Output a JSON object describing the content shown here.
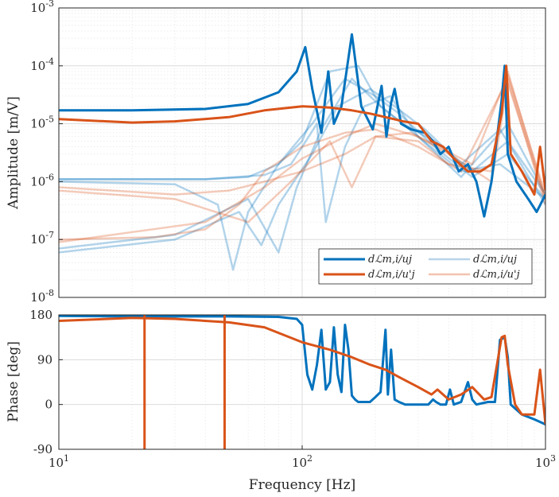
{
  "chart_data": [
    {
      "type": "line",
      "subplot": "amplitude",
      "xscale": "log",
      "yscale": "log",
      "xlim": [
        10,
        1000
      ],
      "ylim": [
        1e-08,
        0.001
      ],
      "ylabel": "Amplitude [m/V]",
      "grid": true,
      "legend_position": "bottom-right",
      "y_ticks": [
        {
          "value": 1e-08,
          "base": "10",
          "exp": "-8"
        },
        {
          "value": 1e-07,
          "base": "10",
          "exp": "-7"
        },
        {
          "value": 1e-06,
          "base": "10",
          "exp": "-6"
        },
        {
          "value": 1e-05,
          "base": "10",
          "exp": "-5"
        },
        {
          "value": 0.0001,
          "base": "10",
          "exp": "-4"
        },
        {
          "value": 0.001,
          "base": "10",
          "exp": "-3"
        }
      ],
      "legend": [
        {
          "text": "dℒm,i/uj",
          "color": "#0072BD",
          "style": "bold"
        },
        {
          "text": "dℒm,i/u'j",
          "color": "#D95319",
          "style": "bold"
        },
        {
          "text": "dℒm,i/uj",
          "color": "#B8D4EA",
          "style": "light"
        },
        {
          "text": "dℒm,i/u'j",
          "color": "#F2C3AE",
          "style": "light"
        }
      ],
      "series": [
        {
          "name": "dℒm,i/uj",
          "color": "#0072BD",
          "style": "bold",
          "x": [
            10,
            20,
            40,
            60,
            80,
            95,
            103,
            110,
            120,
            128,
            135,
            145,
            160,
            175,
            195,
            212,
            222,
            232,
            240,
            255,
            280,
            320,
            345,
            370,
            400,
            440,
            480,
            520,
            560,
            600,
            660,
            680,
            700,
            760,
            850,
            920,
            1000
          ],
          "y": [
            1.7e-05,
            1.7e-05,
            1.8e-05,
            2.2e-05,
            3.5e-05,
            8e-05,
            0.00021,
            4e-05,
            7e-06,
            8e-05,
            1e-05,
            2e-05,
            0.00035,
            2e-05,
            8e-06,
            4.5e-05,
            6e-06,
            2.3e-05,
            4e-05,
            1e-05,
            8e-06,
            7e-06,
            5e-06,
            3e-06,
            4e-06,
            1.5e-06,
            2e-06,
            1e-06,
            2.5e-07,
            1e-06,
            2.5e-05,
            0.0001,
            3e-06,
            1e-06,
            5e-07,
            3e-07,
            6e-07
          ]
        },
        {
          "name": "dℒm,i/u'j",
          "color": "#D95319",
          "style": "bold",
          "x": [
            10,
            20,
            30,
            50,
            70,
            100,
            130,
            160,
            190,
            220,
            260,
            300,
            340,
            380,
            420,
            480,
            540,
            600,
            660,
            690,
            720,
            800,
            900,
            950,
            1000
          ],
          "y": [
            1.2e-05,
            1.05e-05,
            1.1e-05,
            1.3e-05,
            1.7e-05,
            2e-05,
            1.9e-05,
            1.7e-05,
            1.5e-05,
            1.3e-05,
            1.1e-05,
            1e-05,
            5e-06,
            4e-06,
            2.5e-06,
            1.5e-06,
            1.5e-06,
            2e-06,
            1.5e-05,
            0.0001,
            3e-06,
            1.5e-06,
            6e-07,
            4e-06,
            7e-07
          ]
        },
        {
          "color": "#0072BD",
          "style": "light",
          "x": [
            10,
            40,
            60,
            80,
            100,
            130,
            170,
            210,
            260,
            350,
            500,
            700,
            1000
          ],
          "y": [
            1.1e-06,
            1.1e-06,
            1.2e-06,
            2e-06,
            5e-06,
            8e-05,
            0.0001,
            2e-05,
            1e-05,
            5e-06,
            1.5e-06,
            5e-06,
            6e-07
          ]
        },
        {
          "color": "#0072BD",
          "style": "light",
          "x": [
            10,
            30,
            45,
            52,
            60,
            80,
            110,
            150,
            200,
            250,
            350,
            500,
            700,
            1000
          ],
          "y": [
            1e-06,
            9e-07,
            4e-07,
            3e-08,
            3e-07,
            2e-06,
            1e-05,
            6e-05,
            3e-05,
            1.5e-05,
            4e-06,
            1.2e-06,
            3e-06,
            5e-07
          ]
        },
        {
          "color": "#0072BD",
          "style": "light",
          "x": [
            10,
            30,
            55,
            68,
            80,
            110,
            140,
            190,
            240,
            320,
            450,
            650,
            1000
          ],
          "y": [
            6e-08,
            1e-07,
            3e-07,
            8e-08,
            4e-07,
            3e-06,
            2e-05,
            4e-05,
            2e-05,
            8e-06,
            2e-06,
            8e-06,
            4e-07
          ]
        },
        {
          "color": "#0072BD",
          "style": "light",
          "x": [
            10,
            30,
            60,
            80,
            95,
            120,
            160,
            210,
            300,
            450,
            650,
            1000
          ],
          "y": [
            7e-08,
            1.2e-07,
            5e-07,
            6e-08,
            8e-07,
            8e-06,
            6e-05,
            2e-05,
            6e-06,
            1.5e-06,
            2e-06,
            5e-07
          ]
        },
        {
          "color": "#0072BD",
          "style": "light",
          "x": [
            10,
            40,
            70,
            90,
            115,
            125,
            150,
            180,
            230,
            300,
            450,
            700,
            1000
          ],
          "y": [
            1.1e-06,
            1.1e-06,
            1.3e-06,
            2e-06,
            1e-05,
            2e-07,
            4e-06,
            2e-05,
            3e-05,
            6e-06,
            1.2e-06,
            1e-05,
            6e-07
          ]
        },
        {
          "color": "#D95319",
          "style": "light",
          "x": [
            10,
            30,
            50,
            70,
            100,
            150,
            200,
            300,
            400,
            600,
            700,
            1000
          ],
          "y": [
            8e-07,
            6e-07,
            7e-07,
            1e-06,
            1.5e-06,
            3e-06,
            6e-06,
            5e-06,
            2e-06,
            1.5e-06,
            8e-05,
            5e-07
          ]
        },
        {
          "color": "#D95319",
          "style": "light",
          "x": [
            10,
            25,
            40,
            55,
            70,
            100,
            150,
            200,
            300,
            450,
            700,
            1000
          ],
          "y": [
            1e-07,
            1.1e-07,
            1.5e-07,
            4e-07,
            1.5e-06,
            4e-06,
            7e-06,
            8e-06,
            4e-06,
            1.5e-06,
            6e-05,
            4e-07
          ]
        },
        {
          "color": "#D95319",
          "style": "light",
          "x": [
            10,
            30,
            60,
            90,
            130,
            160,
            200,
            280,
            400,
            600,
            700,
            1000
          ],
          "y": [
            7e-07,
            5e-07,
            2e-07,
            1e-06,
            5e-06,
            8e-07,
            6e-06,
            7e-06,
            3e-06,
            1e-06,
            5e-05,
            5e-07
          ]
        },
        {
          "color": "#D95319",
          "style": "light",
          "x": [
            10,
            40,
            70,
            100,
            150,
            200,
            300,
            500,
            700,
            1000
          ],
          "y": [
            9e-08,
            2e-07,
            8e-07,
            2.5e-06,
            6e-06,
            1e-05,
            6e-06,
            2e-06,
            7e-05,
            6e-07
          ]
        }
      ]
    },
    {
      "type": "line",
      "subplot": "phase",
      "xscale": "log",
      "xlim": [
        10,
        1000
      ],
      "ylim": [
        -90,
        180
      ],
      "xlabel": "Frequency [Hz]",
      "ylabel": "Phase [deg]",
      "grid": true,
      "y_ticks": [
        "-90",
        "0",
        "90",
        "180"
      ],
      "x_ticks": [
        {
          "value": 10,
          "base": "10",
          "exp": "1"
        },
        {
          "value": 100,
          "base": "10",
          "exp": "2"
        },
        {
          "value": 1000,
          "base": "10",
          "exp": "3"
        }
      ],
      "series": [
        {
          "name": "dℒm,i/uj",
          "color": "#0072BD",
          "x": [
            10,
            20,
            50,
            80,
            95,
            100,
            105,
            110,
            115,
            120,
            125,
            130,
            135,
            140,
            145,
            150,
            155,
            160,
            165,
            170,
            180,
            190,
            200,
            210,
            220,
            225,
            232,
            240,
            250,
            265,
            300,
            330,
            345,
            355,
            370,
            390,
            405,
            420,
            450,
            480,
            500,
            520,
            580,
            620,
            650,
            680,
            700,
            720,
            800,
            900,
            950,
            1000
          ],
          "y": [
            178,
            177,
            177,
            176,
            172,
            160,
            60,
            30,
            80,
            150,
            30,
            45,
            155,
            60,
            25,
            160,
            110,
            18,
            10,
            5,
            5,
            5,
            15,
            25,
            150,
            20,
            110,
            10,
            5,
            0,
            0,
            0,
            10,
            5,
            0,
            0,
            30,
            0,
            5,
            45,
            10,
            0,
            5,
            5,
            130,
            135,
            95,
            0,
            -20,
            -30,
            -35,
            -40
          ]
        },
        {
          "name": "dℒm,i/u'j",
          "color": "#D95319",
          "x": [
            10,
            20,
            30,
            50,
            70,
            100,
            130,
            160,
            190,
            220,
            250,
            300,
            340,
            360,
            400,
            450,
            500,
            560,
            600,
            660,
            680,
            700,
            750,
            800,
            900,
            950,
            1000
          ],
          "y": [
            168,
            174,
            172,
            165,
            155,
            125,
            110,
            95,
            80,
            70,
            55,
            35,
            20,
            30,
            10,
            20,
            35,
            10,
            15,
            135,
            138,
            80,
            0,
            -20,
            -20,
            70,
            -40
          ]
        }
      ],
      "phase_wraps": [
        {
          "color": "#D95319",
          "x": 22.5,
          "from": 180,
          "to": -90
        },
        {
          "color": "#D95319",
          "x": 48,
          "from": -90,
          "to": 180
        }
      ]
    }
  ]
}
